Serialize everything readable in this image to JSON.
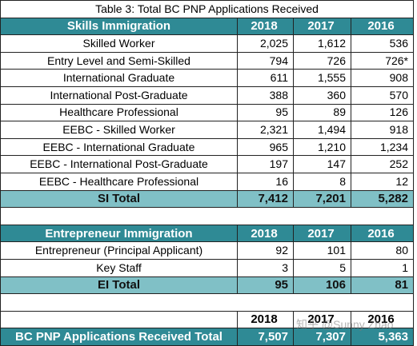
{
  "table": {
    "title": "Table 3: Total BC PNP Applications Received",
    "skills": {
      "header": [
        "Skills Immigration",
        "2018",
        "2017",
        "2016"
      ],
      "rows": [
        [
          "Skilled Worker",
          "2,025",
          "1,612",
          "536"
        ],
        [
          "Entry Level and Semi-Skilled",
          "794",
          "726",
          "726*"
        ],
        [
          "International Graduate",
          "611",
          "1,555",
          "908"
        ],
        [
          "International Post-Graduate",
          "388",
          "360",
          "570"
        ],
        [
          "Healthcare Professional",
          "95",
          "89",
          "126"
        ],
        [
          "EEBC - Skilled Worker",
          "2,321",
          "1,494",
          "918"
        ],
        [
          "EEBC - International Graduate",
          "965",
          "1,210",
          "1,234"
        ],
        [
          "EEBC - International Post-Graduate",
          "197",
          "147",
          "252"
        ],
        [
          "EEBC - Healthcare Professional",
          "16",
          "8",
          "12"
        ]
      ],
      "total": [
        "SI Total",
        "7,412",
        "7,201",
        "5,282"
      ]
    },
    "entrepreneur": {
      "header": [
        "Entrepreneur Immigration",
        "2018",
        "2017",
        "2016"
      ],
      "rows": [
        [
          "Entrepreneur (Principal Applicant)",
          "92",
          "101",
          "80"
        ],
        [
          "Key Staff",
          "3",
          "5",
          "1"
        ]
      ],
      "total": [
        "EI Total",
        "95",
        "106",
        "81"
      ]
    },
    "overall": {
      "header": [
        "2018",
        "2017",
        "2016"
      ],
      "total": [
        "BC PNP Applications Received Total",
        "7,507",
        "7,307",
        "5,363"
      ]
    },
    "watermark": "知乎 @Sunny Zhao"
  }
}
